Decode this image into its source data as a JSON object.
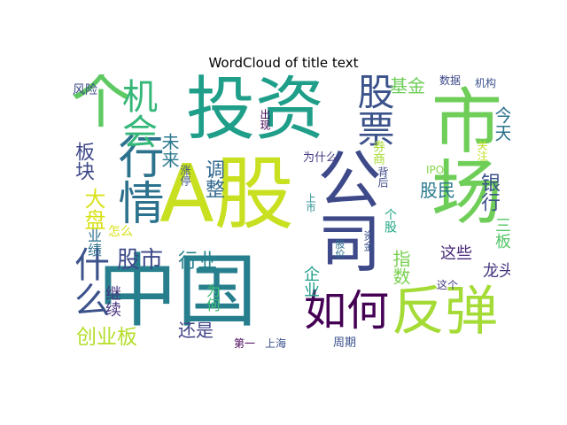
{
  "chart_data": {
    "type": "wordcloud",
    "title": "WordCloud of title text",
    "words": [
      {
        "text": "A股",
        "color": "#c8e020"
      },
      {
        "text": "中国",
        "color": "#277f8e"
      },
      {
        "text": "投资",
        "color": "#1f9e89"
      },
      {
        "text": "市场",
        "color": "#6ece58"
      },
      {
        "text": "公司",
        "color": "#3e4989"
      },
      {
        "text": "反弹",
        "color": "#a5db36"
      },
      {
        "text": "如何",
        "color": "#440154"
      },
      {
        "text": "个",
        "color": "#5ec962"
      },
      {
        "text": "行情",
        "color": "#2c728e"
      },
      {
        "text": "股票",
        "color": "#3b528b"
      },
      {
        "text": "什么",
        "color": "#3b528b"
      },
      {
        "text": "机会",
        "color": "#35b779"
      },
      {
        "text": "创业板",
        "color": "#b5de2b"
      },
      {
        "text": "股市",
        "color": "#3e4989"
      },
      {
        "text": "调整",
        "color": "#31688e"
      },
      {
        "text": "大盘",
        "color": "#d8e219"
      },
      {
        "text": "板块",
        "color": "#3e4989"
      },
      {
        "text": "还是",
        "color": "#414487"
      },
      {
        "text": "行业",
        "color": "#26828e"
      },
      {
        "text": "未来",
        "color": "#2a788e"
      },
      {
        "text": "股民",
        "color": "#2a788e"
      },
      {
        "text": "基金",
        "color": "#6ece58"
      },
      {
        "text": "银行",
        "color": "#3b528b"
      },
      {
        "text": "今天",
        "color": "#2c728e"
      },
      {
        "text": "三板",
        "color": "#54c568"
      },
      {
        "text": "龙头",
        "color": "#46337f"
      },
      {
        "text": "这些",
        "color": "#482878"
      },
      {
        "text": "指数",
        "color": "#7ad151"
      },
      {
        "text": "企业",
        "color": "#1f9e89"
      },
      {
        "text": "继续",
        "color": "#46337f"
      },
      {
        "text": "为何",
        "color": "#3fbc73"
      },
      {
        "text": "业绩",
        "color": "#2d708e"
      },
      {
        "text": "怎么",
        "color": "#d8e219"
      },
      {
        "text": "风险",
        "color": "#3e4989"
      },
      {
        "text": "数据",
        "color": "#3e4989"
      },
      {
        "text": "机构",
        "color": "#3b528b"
      },
      {
        "text": "出现",
        "color": "#440154"
      },
      {
        "text": "涨停",
        "color": "#3b528b"
      },
      {
        "text": "为什么",
        "color": "#443983"
      },
      {
        "text": "券商",
        "color": "#a8db34"
      },
      {
        "text": "关注",
        "color": "#c2df23"
      },
      {
        "text": "背后",
        "color": "#3e4989"
      },
      {
        "text": "IPO",
        "color": "#86d549"
      },
      {
        "text": "上市",
        "color": "#228c8d"
      },
      {
        "text": "个股",
        "color": "#21a685"
      },
      {
        "text": "资金",
        "color": "#3b528b"
      },
      {
        "text": "股价",
        "color": "#2d708e"
      },
      {
        "text": "周期",
        "color": "#3b528b"
      },
      {
        "text": "这个",
        "color": "#433e85"
      },
      {
        "text": "第一",
        "color": "#440154"
      },
      {
        "text": "上海",
        "color": "#3b528b"
      }
    ]
  }
}
